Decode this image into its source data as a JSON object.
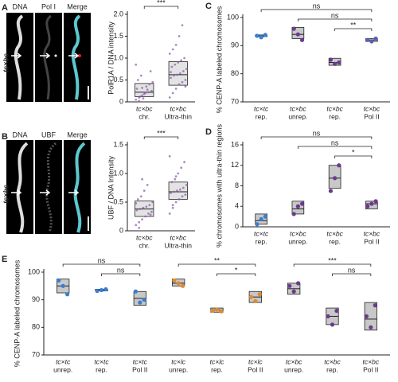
{
  "chart_data": [
    {
      "type": "box",
      "panel": "A",
      "image_labels": [
        "DNA",
        "Pol I",
        "Merge"
      ],
      "specimen_label": "tc×bc",
      "ylabel": "PolR1A / DNA intensity",
      "ylim": [
        0,
        2
      ],
      "yticks": [
        0,
        0.5,
        {
          "value": 1,
          "label": "1.0"
        },
        1.5,
        {
          "value": 2,
          "label": "2.0"
        }
      ],
      "categories": [
        [
          "tc×bc",
          "chr."
        ],
        [
          "tc×bc",
          "Ultra-thin"
        ]
      ],
      "category_colors": [
        "#6a2c80",
        "#6a2c80"
      ],
      "point_color": "#8a5aa8",
      "groups": [
        {
          "box": [
            0.12,
            0.22,
            0.42
          ],
          "points": [
            0.05,
            0.1,
            0.15,
            0.2,
            0.22,
            0.25,
            0.3,
            0.12,
            0.08,
            0.35,
            0.4,
            0.45,
            0.5,
            0.6,
            0.18,
            0.28,
            0.7,
            0.85,
            0.02,
            0.32
          ]
        },
        {
          "box": [
            0.38,
            0.62,
            0.92
          ],
          "points": [
            0.1,
            0.2,
            0.3,
            0.4,
            0.45,
            0.5,
            0.55,
            0.6,
            0.62,
            0.65,
            0.7,
            0.75,
            0.8,
            0.85,
            0.9,
            0.95,
            1.0,
            1.1,
            1.2,
            1.3,
            1.5,
            1.75,
            0.35,
            0.68
          ]
        }
      ],
      "brackets": [
        {
          "from": 0,
          "to": 1,
          "label": "***"
        }
      ]
    },
    {
      "type": "box",
      "panel": "B",
      "image_labels": [
        "DNA",
        "UBF",
        "Merge"
      ],
      "specimen_label": "tc×bc",
      "ylabel": "UBF / DNA Intensity",
      "ylim": [
        0,
        1.5
      ],
      "yticks": [
        0,
        0.5,
        {
          "value": 1,
          "label": "1.0"
        },
        1.5
      ],
      "categories": [
        [
          "tc×bc",
          "chr."
        ],
        [
          "tc×bc",
          "Ultra-thin"
        ]
      ],
      "category_colors": [
        "#6a2c80",
        "#6a2c80"
      ],
      "point_color": "#8a5aa8",
      "groups": [
        {
          "box": [
            0.25,
            0.38,
            0.52
          ],
          "points": [
            0.1,
            0.15,
            0.2,
            0.25,
            0.3,
            0.33,
            0.36,
            0.38,
            0.4,
            0.42,
            0.45,
            0.5,
            0.55,
            0.6,
            0.7,
            0.8,
            0.28,
            0.48,
            0.05,
            0.9
          ]
        },
        {
          "box": [
            0.55,
            0.68,
            0.85
          ],
          "points": [
            0.3,
            0.4,
            0.5,
            0.55,
            0.6,
            0.63,
            0.66,
            0.68,
            0.7,
            0.72,
            0.75,
            0.8,
            0.85,
            0.9,
            1.0,
            1.1,
            1.2,
            1.3,
            0.45,
            0.95
          ]
        }
      ],
      "brackets": [
        {
          "from": 0,
          "to": 1,
          "label": "***"
        }
      ]
    },
    {
      "type": "box",
      "panel": "C",
      "ylabel": "% CENP-A labeled chromosomes",
      "ylim": [
        70,
        100
      ],
      "yticks": [
        70,
        80,
        90,
        100
      ],
      "categories": [
        [
          "tc×tc",
          "rep."
        ],
        [
          "tc×bc",
          "unrep."
        ],
        [
          "tc×bc",
          "rep."
        ],
        [
          "tc×bc",
          "Pol II"
        ]
      ],
      "category_colors": [
        "#3a5fb0",
        "#6a2c80",
        "#6a2c80",
        "#6a2c80"
      ],
      "point_colors": [
        "#3a7fd0",
        "#6a3a90",
        "#6a3a90",
        "#5a60b8"
      ],
      "groups": [
        {
          "box": [
            93.2,
            93.5,
            93.8
          ],
          "points": [
            93.5,
            93,
            93.8
          ]
        },
        {
          "box": [
            92.5,
            94,
            96.5
          ],
          "points": [
            96,
            94,
            92
          ]
        },
        {
          "box": [
            83,
            84,
            85.5
          ],
          "points": [
            85,
            83.5,
            84
          ]
        },
        {
          "box": [
            91.5,
            92,
            92.5
          ],
          "points": [
            92,
            91.5,
            92.5
          ]
        }
      ],
      "brackets": [
        {
          "from": 0,
          "to": 3,
          "label": "ns"
        },
        {
          "from": 1,
          "to": 3,
          "label": "ns"
        },
        {
          "from": 2,
          "to": 3,
          "label": "**"
        }
      ]
    },
    {
      "type": "box",
      "panel": "D",
      "ylabel": "% chromosomes with ultra-thin regions",
      "ylim": [
        0,
        16
      ],
      "yticks": [
        0,
        4,
        8,
        12,
        16
      ],
      "categories": [
        [
          "tc×tc",
          "rep."
        ],
        [
          "tc×bc",
          "unrep."
        ],
        [
          "tc×bc",
          "rep."
        ],
        [
          "tc×bc",
          "Pol II"
        ]
      ],
      "category_colors": [
        "#3a5fb0",
        "#6a2c80",
        "#6a2c80",
        "#6a2c80"
      ],
      "point_colors": [
        "#3a7fd0",
        "#6a3a90",
        "#6a3a90",
        "#6a3a90"
      ],
      "groups": [
        {
          "box": [
            0.5,
            1.2,
            2.5
          ],
          "points": [
            0.5,
            1.5,
            2
          ]
        },
        {
          "box": [
            2.5,
            3.5,
            5
          ],
          "points": [
            2.5,
            4,
            4.5
          ]
        },
        {
          "box": [
            7.5,
            9.5,
            12
          ],
          "points": [
            7,
            9.5,
            12
          ]
        },
        {
          "box": [
            3.5,
            4.5,
            5
          ],
          "points": [
            4,
            4.5,
            5
          ]
        }
      ],
      "brackets": [
        {
          "from": 0,
          "to": 3,
          "label": "ns"
        },
        {
          "from": 1,
          "to": 3,
          "label": "ns"
        },
        {
          "from": 2,
          "to": 3,
          "label": "*"
        }
      ]
    },
    {
      "type": "box",
      "panel": "E",
      "ylabel": "% CENP-A labeled chromosomes",
      "ylim": [
        70,
        100
      ],
      "yticks": [
        70,
        80,
        90,
        100
      ],
      "categories": [
        [
          "tc×tc",
          "unrep."
        ],
        [
          "tc×tc",
          "rep."
        ],
        [
          "tc×tc",
          "Pol II"
        ],
        [
          "tc×lc",
          "unrep."
        ],
        [
          "tc×lc",
          "rep."
        ],
        [
          "tc×lc",
          "Pol II"
        ],
        [
          "tc×bc",
          "unrep."
        ],
        [
          "tc×bc",
          "rep."
        ],
        [
          "tc×bc",
          "Pol II"
        ]
      ],
      "category_colors": [
        "#3a5fb0",
        "#3a5fb0",
        "#3a5fb0",
        "#c86a10",
        "#c86a10",
        "#c86a10",
        "#6a2c80",
        "#6a2c80",
        "#6a2c80"
      ],
      "point_colors": [
        "#3a7fd0",
        "#3a7fd0",
        "#3a7fd0",
        "#e08a30",
        "#e08a30",
        "#e08a30",
        "#6a3a90",
        "#6a3a90",
        "#6a3a90"
      ],
      "groups": [
        {
          "box": [
            92.5,
            95,
            97.5
          ],
          "points": [
            97,
            95,
            92
          ]
        },
        {
          "box": [
            93.2,
            93.5,
            93.8
          ],
          "points": [
            93.2,
            93.5,
            93.8
          ]
        },
        {
          "box": [
            88,
            90.5,
            93
          ],
          "points": [
            93,
            89,
            90
          ]
        },
        {
          "box": [
            95,
            96,
            97.5
          ],
          "points": [
            97,
            96,
            95
          ]
        },
        {
          "box": [
            85.5,
            86.3,
            87
          ],
          "points": [
            86,
            86.5,
            85.8
          ]
        },
        {
          "box": [
            89,
            91,
            93
          ],
          "points": [
            91,
            89.5,
            92
          ]
        },
        {
          "box": [
            92,
            94,
            96
          ],
          "points": [
            95,
            93,
            96
          ]
        },
        {
          "box": [
            81,
            84,
            87
          ],
          "points": [
            84,
            81,
            86
          ]
        },
        {
          "box": [
            79,
            83,
            89
          ],
          "points": [
            84,
            80,
            88
          ]
        }
      ],
      "brackets": [
        {
          "from": 0,
          "to": 2,
          "label": "ns"
        },
        {
          "from": 1,
          "to": 2,
          "label": "ns"
        },
        {
          "from": 3,
          "to": 5,
          "label": "**"
        },
        {
          "from": 4,
          "to": 5,
          "label": "*"
        },
        {
          "from": 6,
          "to": 8,
          "label": "***"
        },
        {
          "from": 7,
          "to": 8,
          "label": "ns"
        }
      ]
    }
  ]
}
